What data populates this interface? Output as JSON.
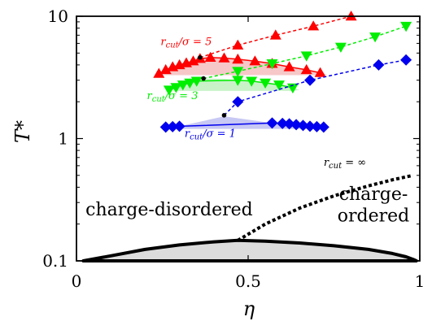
{
  "chart_data": {
    "type": "line",
    "title": "",
    "xlabel": "η",
    "ylabel": "T*",
    "xlim": [
      0,
      1
    ],
    "ylim": [
      0.1,
      10
    ],
    "yscale": "log",
    "grid": false,
    "x_ticks": [
      {
        "value": 0,
        "label": "0"
      },
      {
        "value": 0.5,
        "label": "0.5"
      },
      {
        "value": 1,
        "label": "1"
      }
    ],
    "y_ticks": [
      {
        "value": 0.1,
        "label": "0.1"
      },
      {
        "value": 1,
        "label": "1"
      },
      {
        "value": 10,
        "label": "10"
      }
    ],
    "regions": [
      {
        "label": "charge-disordered",
        "x": 0.27,
        "y": 0.235
      },
      {
        "label": "charge-",
        "x": 0.865,
        "y": 0.315
      },
      {
        "label": "ordered",
        "x": 0.865,
        "y": 0.21
      }
    ],
    "series": [
      {
        "color": "#ff0000",
        "marker": "triangle-up",
        "annotation": {
          "text": "r_cut/σ = 5",
          "x": 0.245,
          "y": 5.8
        },
        "coexistence": {
          "fill": "#f6c8c8",
          "x": [
            0.24,
            0.26,
            0.28,
            0.3,
            0.32,
            0.34,
            0.36,
            0.39,
            0.43,
            0.47,
            0.52,
            0.57,
            0.62,
            0.67,
            0.71,
            0.73,
            0.71,
            0.67,
            0.62,
            0.57,
            0.52,
            0.47,
            0.43,
            0.39,
            0.36,
            0.34,
            0.32,
            0.3,
            0.28,
            0.26,
            0.24
          ],
          "y": [
            3.4,
            3.65,
            3.85,
            4.0,
            4.15,
            4.3,
            4.5,
            4.6,
            4.55,
            4.45,
            4.3,
            4.1,
            3.85,
            3.65,
            3.45,
            3.35,
            3.3,
            3.3,
            3.3,
            3.3,
            3.3,
            3.3,
            3.3,
            3.3,
            3.3,
            3.3,
            3.3,
            3.3,
            3.3,
            3.3,
            3.4
          ]
        },
        "markers_x": [
          0.24,
          0.26,
          0.28,
          0.3,
          0.32,
          0.34,
          0.36,
          0.39,
          0.43,
          0.47,
          0.52,
          0.57,
          0.62,
          0.67,
          0.71
        ],
        "markers_y": [
          3.4,
          3.65,
          3.85,
          4.0,
          4.15,
          4.3,
          4.5,
          4.6,
          4.55,
          4.45,
          4.3,
          4.1,
          3.85,
          3.65,
          3.45
        ],
        "critical_point": {
          "x": 0.36,
          "y": 4.6
        },
        "dashed": {
          "x": [
            0.36,
            0.47,
            0.58,
            0.69,
            0.8
          ],
          "y": [
            4.6,
            5.8,
            7.0,
            8.3,
            10.0
          ]
        }
      },
      {
        "color": "#00ee00",
        "marker": "triangle-down",
        "annotation": {
          "text": "r_cut/σ = 3",
          "x": 0.205,
          "y": 2.1
        },
        "coexistence": {
          "fill": "#c9f2c9",
          "x": [
            0.27,
            0.29,
            0.31,
            0.33,
            0.35,
            0.37,
            0.39,
            0.43,
            0.47,
            0.51,
            0.55,
            0.59,
            0.63,
            0.65,
            0.63,
            0.59,
            0.55,
            0.51,
            0.47,
            0.43,
            0.39,
            0.37,
            0.35,
            0.33,
            0.31,
            0.29,
            0.27
          ],
          "y": [
            2.5,
            2.62,
            2.75,
            2.85,
            2.95,
            3.05,
            3.1,
            3.08,
            3.0,
            2.95,
            2.85,
            2.75,
            2.6,
            2.5,
            2.45,
            2.45,
            2.45,
            2.45,
            2.45,
            2.45,
            2.45,
            2.45,
            2.45,
            2.45,
            2.45,
            2.45,
            2.5
          ]
        },
        "markers_x": [
          0.27,
          0.29,
          0.31,
          0.33,
          0.35,
          0.47,
          0.51,
          0.55,
          0.59,
          0.63
        ],
        "markers_y": [
          2.5,
          2.62,
          2.75,
          2.85,
          2.95,
          3.0,
          2.95,
          2.85,
          2.75,
          2.6
        ],
        "critical_point": {
          "x": 0.37,
          "y": 3.1
        },
        "dashed": {
          "x": [
            0.37,
            0.47,
            0.57,
            0.67,
            0.77,
            0.87,
            0.96
          ],
          "y": [
            3.1,
            3.55,
            4.1,
            4.75,
            5.6,
            6.8,
            8.3
          ]
        }
      },
      {
        "color": "#0000ee",
        "marker": "diamond",
        "annotation": {
          "text": "r_cut/σ = 1",
          "x": 0.315,
          "y": 1.03
        },
        "coexistence": {
          "fill": "#c8c8f4",
          "x": [
            0.26,
            0.28,
            0.3,
            0.43,
            0.57,
            0.6,
            0.62,
            0.64,
            0.66,
            0.68,
            0.7,
            0.72,
            0.7,
            0.68,
            0.66,
            0.64,
            0.62,
            0.6,
            0.57,
            0.43,
            0.3,
            0.28,
            0.26
          ],
          "y": [
            1.24,
            1.25,
            1.26,
            1.52,
            1.34,
            1.33,
            1.32,
            1.3,
            1.28,
            1.26,
            1.25,
            1.24,
            1.2,
            1.2,
            1.2,
            1.2,
            1.2,
            1.2,
            1.2,
            1.2,
            1.2,
            1.2,
            1.24
          ]
        },
        "markers_x": [
          0.26,
          0.28,
          0.3,
          0.57,
          0.6,
          0.62,
          0.64,
          0.66,
          0.68,
          0.7,
          0.72
        ],
        "markers_y": [
          1.24,
          1.25,
          1.26,
          1.34,
          1.33,
          1.32,
          1.3,
          1.28,
          1.26,
          1.25,
          1.24
        ],
        "critical_point": {
          "x": 0.43,
          "y": 1.55
        },
        "dashed": {
          "x": [
            0.43,
            0.47,
            0.68,
            0.88,
            0.96
          ],
          "y": [
            1.55,
            2.0,
            3.0,
            4.0,
            4.4
          ]
        }
      }
    ],
    "rcut_infinity": {
      "annotation": {
        "text": "r_cut = ∞",
        "x": 0.72,
        "y": 0.6
      },
      "coexistence_fill": "#dcdcdc",
      "coexistence_x": [
        0.02,
        0.1,
        0.2,
        0.3,
        0.4,
        0.47,
        0.55,
        0.65,
        0.75,
        0.85,
        0.92,
        0.96,
        0.98,
        0.99
      ],
      "coexistence_y": [
        0.1,
        0.11,
        0.124,
        0.135,
        0.143,
        0.147,
        0.145,
        0.14,
        0.133,
        0.124,
        0.115,
        0.108,
        0.103,
        0.1
      ],
      "lambda_line_x": [
        0.47,
        0.55,
        0.65,
        0.75,
        0.85,
        0.92,
        0.98
      ],
      "lambda_line_y": [
        0.147,
        0.2,
        0.27,
        0.34,
        0.41,
        0.46,
        0.5
      ]
    }
  }
}
